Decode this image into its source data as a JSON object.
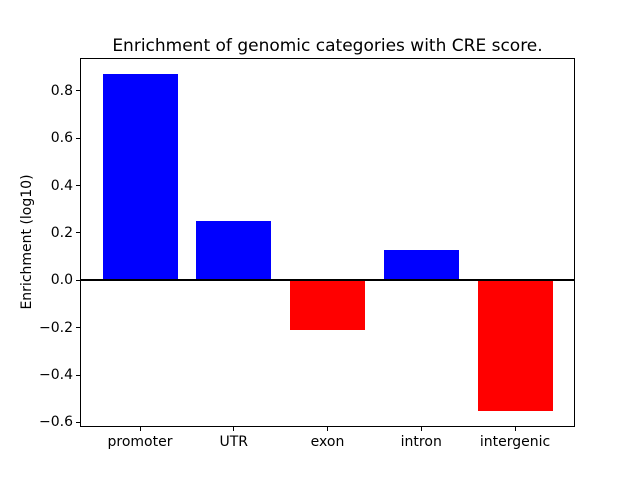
{
  "chart_data": {
    "type": "bar",
    "title": "Enrichment of genomic categories with CRE score.",
    "xlabel": "",
    "ylabel": "Enrichment (log10)",
    "categories": [
      "promoter",
      "UTR",
      "exon",
      "intron",
      "intergenic"
    ],
    "values": [
      0.87,
      0.25,
      -0.21,
      0.13,
      -0.55
    ],
    "bar_colors": [
      "#0000ff",
      "#0000ff",
      "#ff0000",
      "#0000ff",
      "#ff0000"
    ],
    "positive_color": "#0000ff",
    "negative_color": "#ff0000",
    "yticks": [
      0.8,
      0.6,
      0.4,
      0.2,
      0.0,
      -0.2,
      -0.4,
      -0.6
    ],
    "ylim": [
      -0.62,
      0.94
    ],
    "xlim": [
      -0.64,
      4.64
    ],
    "bar_width_data_units": 0.8,
    "zero_line": true,
    "grid": false,
    "legend": null,
    "axis_color": "#000000",
    "background_color": "#ffffff"
  }
}
